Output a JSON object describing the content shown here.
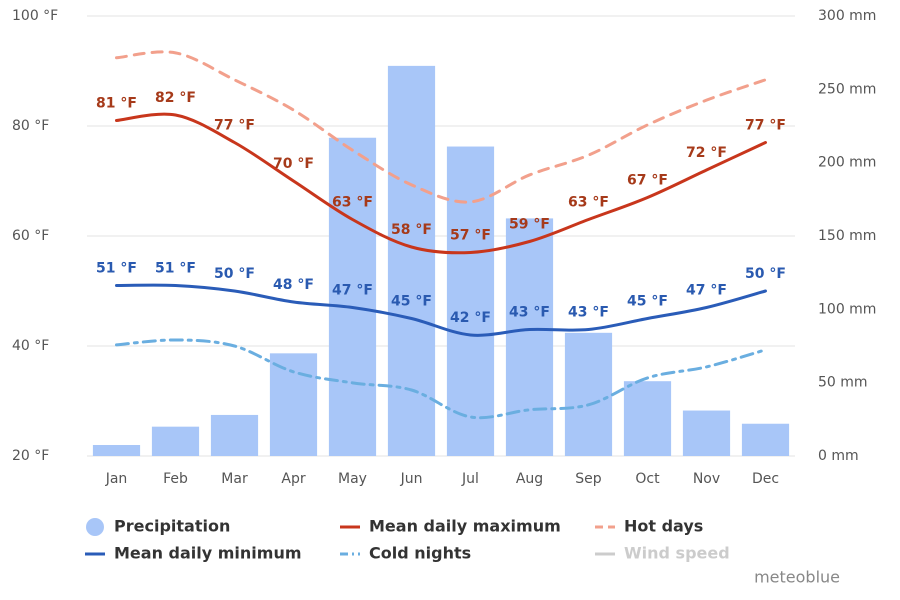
{
  "chart_data": {
    "type": "combo",
    "categories": [
      "Jan",
      "Feb",
      "Mar",
      "Apr",
      "May",
      "Jun",
      "Jul",
      "Aug",
      "Sep",
      "Oct",
      "Nov",
      "Dec"
    ],
    "ylim": [
      20,
      100
    ],
    "yticks": [
      {
        "value": 20,
        "label": "20 °F"
      },
      {
        "value": 40,
        "label": "40 °F"
      },
      {
        "value": 60,
        "label": "60 °F"
      },
      {
        "value": 80,
        "label": "80 °F"
      },
      {
        "value": 100,
        "label": "100 °F"
      }
    ],
    "y2lim": [
      0,
      300
    ],
    "y2ticks": [
      {
        "value": 0,
        "label": "0 mm"
      },
      {
        "value": 50,
        "label": "50 mm"
      },
      {
        "value": 100,
        "label": "100 mm"
      },
      {
        "value": 150,
        "label": "150 mm"
      },
      {
        "value": 200,
        "label": "200 mm"
      },
      {
        "value": 250,
        "label": "250 mm"
      },
      {
        "value": 300,
        "label": "300 mm"
      }
    ],
    "grid": true,
    "series": [
      {
        "name": "Precipitation",
        "type": "bar",
        "axis": "y2",
        "color": "#a8c6f8",
        "values": [
          7.5,
          20,
          28,
          70,
          217,
          266,
          211,
          162,
          84,
          51,
          31,
          22
        ]
      },
      {
        "name": "Mean daily maximum",
        "type": "line",
        "color": "#c8361c",
        "label_color": "#a63a1a",
        "values": [
          81,
          82,
          77,
          70,
          63,
          58,
          57,
          59,
          63,
          67,
          72,
          77
        ],
        "value_labels": [
          "81 °F",
          "82 °F",
          "77 °F",
          "70 °F",
          "63 °F",
          "58 °F",
          "57 °F",
          "59 °F",
          "63 °F",
          "67 °F",
          "72 °F",
          "77 °F"
        ]
      },
      {
        "name": "Hot days",
        "type": "line",
        "dash": "dashed",
        "color": "#f2a08c",
        "values": [
          92.4,
          93.3,
          88.4,
          82.9,
          75.6,
          69.3,
          66.2,
          71.1,
          74.7,
          80.2,
          84.7,
          88.4
        ]
      },
      {
        "name": "Mean daily minimum",
        "type": "line",
        "color": "#2a5cb8",
        "label_color": "#2a5ab0",
        "values": [
          51,
          51,
          50,
          48,
          47,
          45,
          42,
          43,
          43,
          45,
          47,
          50
        ],
        "value_labels": [
          "51 °F",
          "51 °F",
          "50 °F",
          "48 °F",
          "47 °F",
          "45 °F",
          "42 °F",
          "43 °F",
          "43 °F",
          "45 °F",
          "47 °F",
          "50 °F"
        ]
      },
      {
        "name": "Cold nights",
        "type": "line",
        "dash": "dashdot",
        "color": "#6aaee0",
        "values": [
          40.2,
          41.1,
          40,
          35.3,
          33.3,
          32,
          27.1,
          28.4,
          29.3,
          34.2,
          36.2,
          39.3
        ]
      },
      {
        "name": "Wind speed",
        "type": "line",
        "color": "#cccccc",
        "visible": false
      }
    ],
    "watermark": "meteoblue"
  }
}
